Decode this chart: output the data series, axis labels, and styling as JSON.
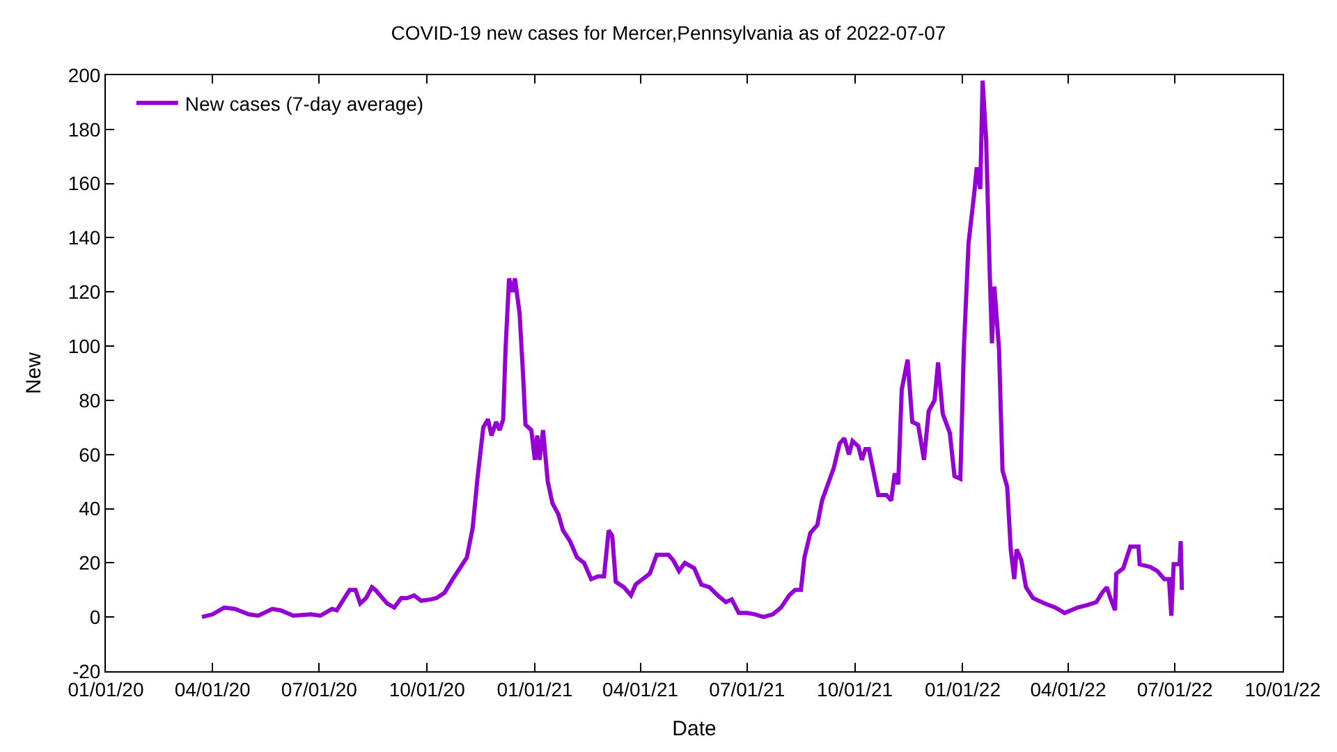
{
  "chart_data": {
    "type": "line",
    "title": "COVID-19 new cases for Mercer,Pennsylvania as of 2022-07-07",
    "xlabel": "Date",
    "ylabel": "New",
    "x": [
      "2020-03-23",
      "2020-04-01",
      "2020-04-11",
      "2020-04-20",
      "2020-05-02",
      "2020-05-10",
      "2020-05-22",
      "2020-05-29",
      "2020-06-09",
      "2020-06-24",
      "2020-07-02",
      "2020-07-12",
      "2020-07-16",
      "2020-07-24",
      "2020-07-27",
      "2020-08-01",
      "2020-08-05",
      "2020-08-10",
      "2020-08-15",
      "2020-08-18",
      "2020-08-28",
      "2020-09-03",
      "2020-09-09",
      "2020-09-14",
      "2020-09-20",
      "2020-09-26",
      "2020-10-04",
      "2020-10-09",
      "2020-10-16",
      "2020-10-23",
      "2020-10-29",
      "2020-11-04",
      "2020-11-09",
      "2020-11-13",
      "2020-11-18",
      "2020-11-22",
      "2020-11-25",
      "2020-11-29",
      "2020-12-02",
      "2020-12-05",
      "2020-12-07",
      "2020-12-10",
      "2020-12-13",
      "2020-12-15",
      "2020-12-19",
      "2020-12-22",
      "2020-12-24",
      "2020-12-29",
      "2021-01-01",
      "2021-01-03",
      "2021-01-05",
      "2021-01-08",
      "2021-01-12",
      "2021-01-16",
      "2021-01-21",
      "2021-01-25",
      "2021-01-31",
      "2021-02-06",
      "2021-02-12",
      "2021-02-18",
      "2021-02-24",
      "2021-03-01",
      "2021-03-05",
      "2021-03-08",
      "2021-03-11",
      "2021-03-18",
      "2021-03-24",
      "2021-03-28",
      "2021-04-03",
      "2021-04-09",
      "2021-04-15",
      "2021-04-25",
      "2021-04-29",
      "2021-05-04",
      "2021-05-09",
      "2021-05-17",
      "2021-05-23",
      "2021-05-30",
      "2021-06-06",
      "2021-06-13",
      "2021-06-18",
      "2021-06-24",
      "2021-07-01",
      "2021-07-08",
      "2021-07-15",
      "2021-07-23",
      "2021-07-30",
      "2021-08-06",
      "2021-08-11",
      "2021-08-16",
      "2021-08-19",
      "2021-08-24",
      "2021-08-30",
      "2021-09-03",
      "2021-09-08",
      "2021-09-13",
      "2021-09-18",
      "2021-09-22",
      "2021-09-26",
      "2021-09-29",
      "2021-10-04",
      "2021-10-07",
      "2021-10-10",
      "2021-10-13",
      "2021-10-21",
      "2021-10-28",
      "2021-11-01",
      "2021-11-04",
      "2021-11-07",
      "2021-11-10",
      "2021-11-15",
      "2021-11-19",
      "2021-11-24",
      "2021-11-29",
      "2021-12-03",
      "2021-12-08",
      "2021-12-11",
      "2021-12-15",
      "2021-12-21",
      "2021-12-25",
      "2021-12-30",
      "2022-01-02",
      "2022-01-06",
      "2022-01-11",
      "2022-01-13",
      "2022-01-16",
      "2022-01-18",
      "2022-01-21",
      "2022-01-24",
      "2022-01-26",
      "2022-01-28",
      "2022-02-01",
      "2022-02-04",
      "2022-02-08",
      "2022-02-11",
      "2022-02-14",
      "2022-02-16",
      "2022-02-20",
      "2022-02-24",
      "2022-03-02",
      "2022-03-12",
      "2022-03-21",
      "2022-03-29",
      "2022-04-09",
      "2022-04-18",
      "2022-04-25",
      "2022-04-30",
      "2022-05-04",
      "2022-05-07",
      "2022-05-11",
      "2022-05-12",
      "2022-05-18",
      "2022-05-24",
      "2022-05-31",
      "2022-06-01",
      "2022-06-10",
      "2022-06-16",
      "2022-06-22",
      "2022-06-26",
      "2022-06-28",
      "2022-06-30",
      "2022-07-05",
      "2022-07-06",
      "2022-07-07"
    ],
    "series": [
      {
        "name": "New cases (7-day average)",
        "color": "#9400d3",
        "values": [
          0,
          1,
          3.5,
          3,
          1,
          0.5,
          3,
          2.5,
          0.5,
          1,
          0.5,
          3,
          2.5,
          8,
          10,
          10,
          5,
          7,
          11,
          10,
          5,
          3.5,
          7,
          7,
          8,
          6,
          6.5,
          7,
          9,
          14,
          18,
          22,
          33,
          51,
          70,
          73,
          67,
          72,
          69,
          73,
          99,
          125,
          120,
          125,
          112,
          89,
          71,
          69,
          58,
          67,
          58,
          69,
          50,
          42,
          38,
          32,
          28,
          22,
          20,
          14,
          15,
          15,
          32,
          30,
          13,
          11,
          8,
          12,
          14,
          16,
          23,
          23,
          21,
          17,
          20,
          18,
          12,
          11,
          8,
          5.5,
          6.5,
          1.5,
          1.5,
          1,
          0,
          1,
          3.5,
          8,
          10,
          10,
          22,
          31,
          34,
          43,
          49,
          55,
          64,
          66,
          60,
          65,
          63,
          58,
          62,
          62,
          45,
          45,
          43,
          53,
          49,
          84,
          95,
          72,
          71,
          58,
          76,
          80,
          94,
          75,
          68,
          52,
          51,
          99,
          138,
          157,
          166,
          158,
          198,
          176,
          128,
          101,
          122,
          99,
          54,
          48,
          25,
          14,
          25,
          21,
          11,
          7,
          5,
          3.5,
          1.5,
          3.5,
          4.5,
          5.5,
          9,
          11,
          7,
          2.5,
          16,
          18,
          26,
          26,
          19.5,
          18.5,
          17,
          14,
          14,
          0.5,
          19.5,
          19.5,
          28,
          10
        ]
      }
    ],
    "xlim": [
      "2020-01-01",
      "2022-10-01"
    ],
    "xticks": [
      {
        "value": "2020-01-01",
        "label": "01/01/20"
      },
      {
        "value": "2020-04-01",
        "label": "04/01/20"
      },
      {
        "value": "2020-07-01",
        "label": "07/01/20"
      },
      {
        "value": "2020-10-01",
        "label": "10/01/20"
      },
      {
        "value": "2021-01-01",
        "label": "01/01/21"
      },
      {
        "value": "2021-04-01",
        "label": "04/01/21"
      },
      {
        "value": "2021-07-01",
        "label": "07/01/21"
      },
      {
        "value": "2021-10-01",
        "label": "10/01/21"
      },
      {
        "value": "2022-01-01",
        "label": "01/01/22"
      },
      {
        "value": "2022-04-01",
        "label": "04/01/22"
      },
      {
        "value": "2022-07-01",
        "label": "07/01/22"
      },
      {
        "value": "2022-10-01",
        "label": "10/01/22"
      }
    ],
    "ylim": [
      -20,
      200
    ],
    "yticks": [
      -20,
      0,
      20,
      40,
      60,
      80,
      100,
      120,
      140,
      160,
      180,
      200
    ],
    "legend": "top left",
    "marker": "none",
    "line_style": "solid"
  }
}
